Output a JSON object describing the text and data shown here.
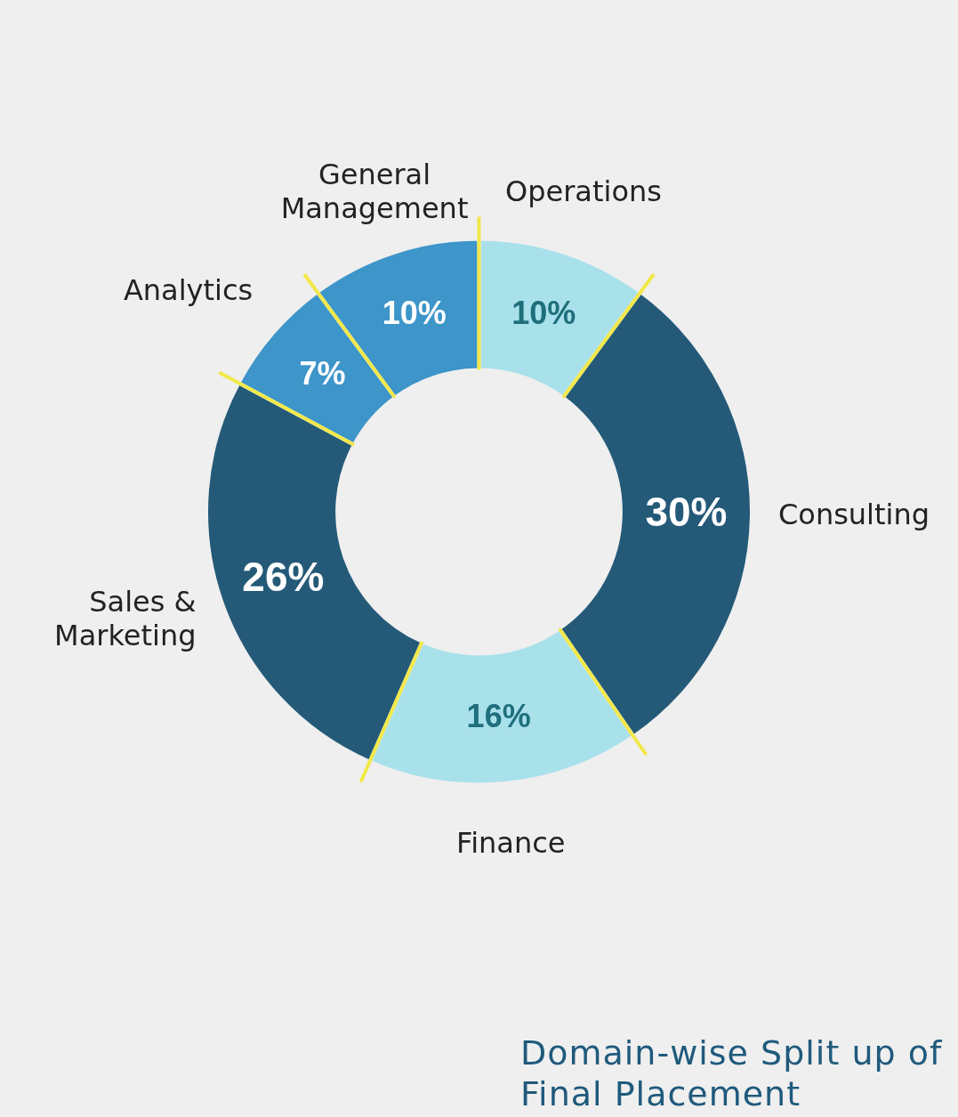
{
  "chart_data": {
    "type": "donut",
    "title": "Domain-wise Split up of Final Placement",
    "categories": [
      "Operations",
      "Consulting",
      "Finance",
      "Sales & Marketing",
      "Analytics",
      "General Management"
    ],
    "values": [
      10,
      30,
      16,
      26,
      7,
      10
    ],
    "colors": [
      "#a9e1eb",
      "#245a78",
      "#a9e1eb",
      "#245a78",
      "#3d95c9",
      "#3d95c9"
    ],
    "value_labels": [
      "10%",
      "30%",
      "16%",
      "26%",
      "7%",
      "10%"
    ],
    "legend": false
  }
}
